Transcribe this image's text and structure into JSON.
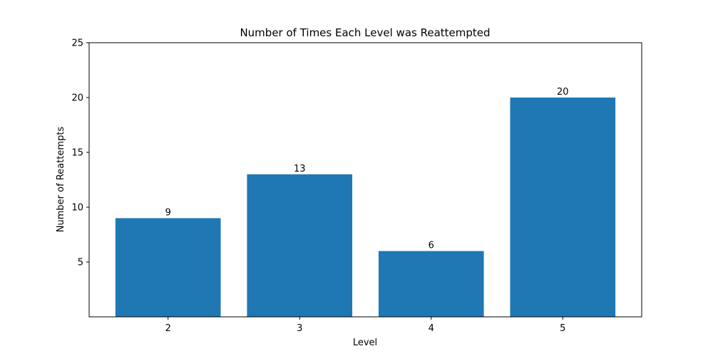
{
  "colors": {
    "bar": "#1f77b4",
    "axis": "#000000",
    "background": "#ffffff"
  },
  "chart_data": {
    "type": "bar",
    "title": "Number of Times Each Level was Reattempted",
    "xlabel": "Level",
    "ylabel": "Number of Reattempts",
    "categories": [
      "2",
      "3",
      "4",
      "5"
    ],
    "values": [
      9,
      13,
      6,
      20
    ],
    "ylim": [
      0,
      25
    ],
    "yticks": [
      5,
      10,
      15,
      20,
      25
    ],
    "grid": false,
    "legend": "none",
    "data_labels": true
  }
}
